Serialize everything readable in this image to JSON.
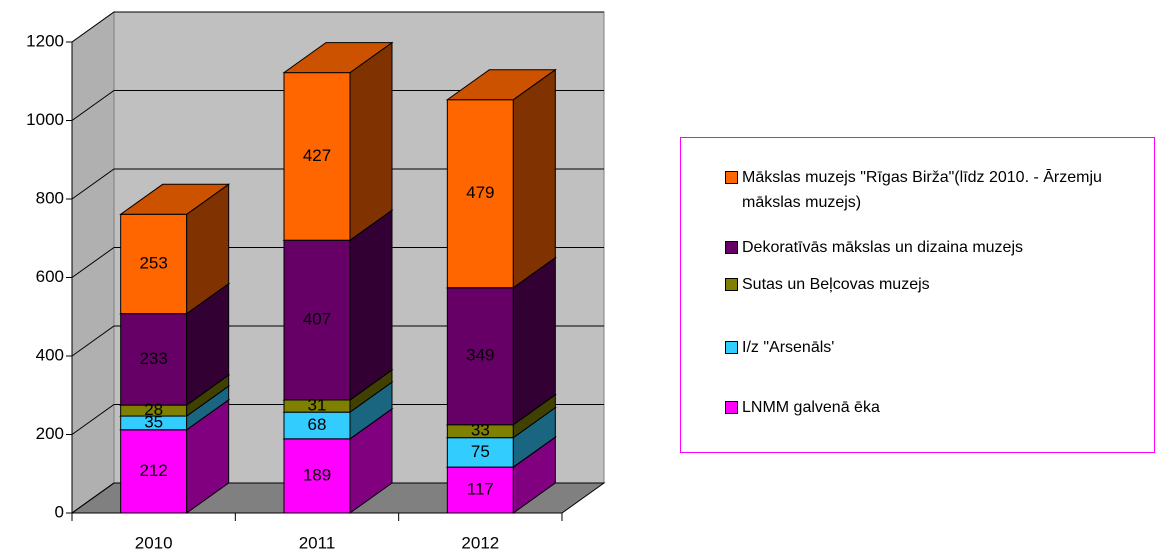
{
  "chart_data": {
    "type": "bar",
    "stacked": true,
    "categories": [
      "2010",
      "2011",
      "2012"
    ],
    "series": [
      {
        "name": "LNMM galvenā ēka",
        "color": "#ff00ff",
        "values": [
          212,
          189,
          117
        ]
      },
      {
        "name": "I/z \"Arsenāls'",
        "color": "#33ccff",
        "values": [
          35,
          68,
          75
        ]
      },
      {
        "name": "Sutas un Beļcovas muzejs",
        "color": "#808000",
        "values": [
          28,
          31,
          33
        ]
      },
      {
        "name": "Dekoratīvās mākslas un dizaina muzejs",
        "color": "#660066",
        "values": [
          233,
          407,
          349
        ]
      },
      {
        "name": "Mākslas muzejs \"Rīgas Birža\"(līdz 2010. - Ārzemju mākslas muzejs)",
        "color": "#ff6600",
        "values": [
          253,
          427,
          479
        ]
      }
    ],
    "ylim": [
      0,
      1200
    ],
    "yticks": [
      0,
      200,
      400,
      600,
      800,
      1000,
      1200
    ],
    "grid": true,
    "legend": "right"
  }
}
